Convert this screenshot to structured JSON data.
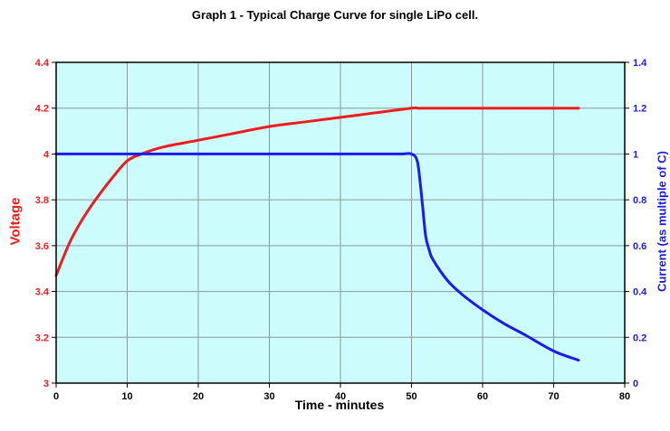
{
  "chart_data": {
    "type": "line",
    "title": "Graph 1 - Typical Charge Curve for single LiPo cell.",
    "xlabel": "Time - minutes",
    "ylabel": "Voltage",
    "ylabel_right": "Current (as multiple of C)",
    "xlim": [
      0,
      80
    ],
    "ylim": [
      3,
      4.4
    ],
    "ylim_right": [
      0,
      1.4
    ],
    "grid": true,
    "background": "#ccfcfc",
    "x_ticks": [
      "0",
      "10",
      "20",
      "30",
      "40",
      "50",
      "60",
      "70",
      "80"
    ],
    "y_ticks": [
      "3",
      "3.2",
      "3.4",
      "3.6",
      "3.8",
      "4",
      "4.2",
      "4.4"
    ],
    "y_ticks_right": [
      "0",
      "0.2",
      "0.4",
      "0.6",
      "0.8",
      "1",
      "1.2",
      "1.4"
    ],
    "series": [
      {
        "axis": "left",
        "color": "#ee1c1c",
        "x": [
          0,
          2,
          4,
          6,
          8,
          10,
          12,
          15,
          20,
          25,
          30,
          35,
          40,
          45,
          50,
          51,
          52,
          55,
          60,
          65,
          70,
          73.5
        ],
        "y": [
          3.47,
          3.62,
          3.73,
          3.82,
          3.9,
          3.97,
          4.0,
          4.03,
          4.06,
          4.09,
          4.12,
          4.14,
          4.16,
          4.18,
          4.2,
          4.2,
          4.2,
          4.2,
          4.2,
          4.2,
          4.2,
          4.2
        ]
      },
      {
        "axis": "right",
        "color": "#1b1bf0",
        "x": [
          0,
          10,
          20,
          30,
          40,
          48,
          50,
          50.8,
          51.2,
          51.6,
          52,
          52.5,
          53,
          55,
          57,
          60,
          63,
          66,
          70,
          73.5
        ],
        "y": [
          1.0,
          1.0,
          1.0,
          1.0,
          1.0,
          1.0,
          1.0,
          0.97,
          0.88,
          0.76,
          0.64,
          0.58,
          0.54,
          0.45,
          0.39,
          0.32,
          0.26,
          0.21,
          0.14,
          0.1
        ]
      }
    ]
  }
}
